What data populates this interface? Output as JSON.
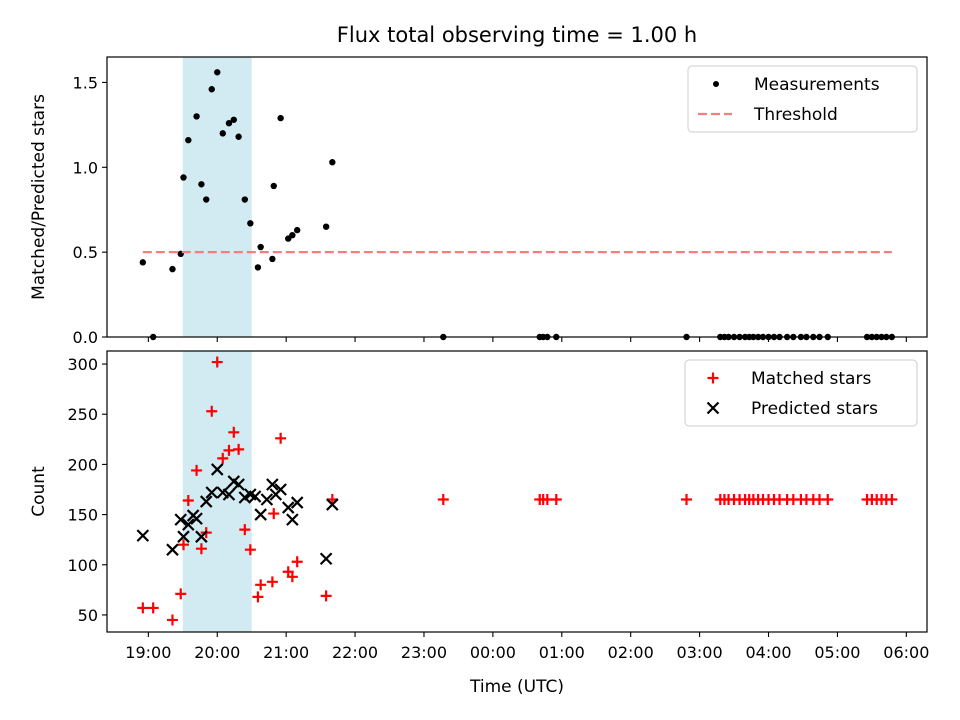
{
  "figure": {
    "title": "Flux total observing time = 1.00 h",
    "xlabel": "Time (UTC)",
    "x_ticks": [
      "19:00",
      "20:00",
      "21:00",
      "22:00",
      "23:00",
      "00:00",
      "01:00",
      "02:00",
      "03:00",
      "04:00",
      "05:00",
      "06:00"
    ],
    "x_tick_hours": [
      0,
      1,
      2,
      3,
      4,
      5,
      6,
      7,
      8,
      9,
      10,
      11
    ],
    "x_origin": "19:00",
    "x_range_hours": [
      -0.6,
      11.3
    ],
    "highlight_span_hours": [
      0.5,
      1.5
    ],
    "highlight_color": "#add8e6"
  },
  "chart_data": [
    {
      "type": "scatter",
      "ylabel": "Matched/Predicted stars",
      "ylim": [
        0,
        1.65
      ],
      "y_ticks": [
        "0.0",
        "0.5",
        "1.0",
        "1.5"
      ],
      "y_tick_values": [
        0,
        0.5,
        1.0,
        1.5
      ],
      "legend_position": "top-right",
      "series": [
        {
          "name": "Measurements",
          "marker": "dot",
          "color": "#000000",
          "points": [
            [
              -0.08,
              0.44
            ],
            [
              0.07,
              0.0
            ],
            [
              0.35,
              0.4
            ],
            [
              0.47,
              0.49
            ],
            [
              0.51,
              0.94
            ],
            [
              0.58,
              1.16
            ],
            [
              0.7,
              1.3
            ],
            [
              0.77,
              0.9
            ],
            [
              0.84,
              0.81
            ],
            [
              0.92,
              1.46
            ],
            [
              1.0,
              1.56
            ],
            [
              1.08,
              1.2
            ],
            [
              1.17,
              1.26
            ],
            [
              1.24,
              1.28
            ],
            [
              1.31,
              1.18
            ],
            [
              1.4,
              0.81
            ],
            [
              1.48,
              0.67
            ],
            [
              1.63,
              0.53
            ],
            [
              1.59,
              0.41
            ],
            [
              1.8,
              0.46
            ],
            [
              1.82,
              0.89
            ],
            [
              1.92,
              1.29
            ],
            [
              2.03,
              0.58
            ],
            [
              2.09,
              0.6
            ],
            [
              2.16,
              0.63
            ],
            [
              2.58,
              0.65
            ],
            [
              2.67,
              1.03
            ],
            [
              4.28,
              0.0
            ],
            [
              5.68,
              0.0
            ],
            [
              5.73,
              0.0
            ],
            [
              5.79,
              0.0
            ],
            [
              5.92,
              0.0
            ],
            [
              7.81,
              0.0
            ],
            [
              8.3,
              0.0
            ],
            [
              8.36,
              0.0
            ],
            [
              8.42,
              0.0
            ],
            [
              8.5,
              0.0
            ],
            [
              8.58,
              0.0
            ],
            [
              8.66,
              0.0
            ],
            [
              8.72,
              0.0
            ],
            [
              8.78,
              0.0
            ],
            [
              8.85,
              0.0
            ],
            [
              8.92,
              0.0
            ],
            [
              9.0,
              0.0
            ],
            [
              9.08,
              0.0
            ],
            [
              9.16,
              0.0
            ],
            [
              9.27,
              0.0
            ],
            [
              9.36,
              0.0
            ],
            [
              9.47,
              0.0
            ],
            [
              9.55,
              0.0
            ],
            [
              9.65,
              0.0
            ],
            [
              9.74,
              0.0
            ],
            [
              9.86,
              0.0
            ],
            [
              10.43,
              0.0
            ],
            [
              10.5,
              0.0
            ],
            [
              10.57,
              0.0
            ],
            [
              10.64,
              0.0
            ],
            [
              10.71,
              0.0
            ],
            [
              10.79,
              0.0
            ]
          ]
        },
        {
          "name": "Threshold",
          "marker": "dashed-line",
          "color": "#f08080",
          "points": [
            [
              -0.08,
              0.5
            ],
            [
              10.79,
              0.5
            ]
          ]
        }
      ]
    },
    {
      "type": "scatter",
      "ylabel": "Count",
      "ylim": [
        33,
        313
      ],
      "y_ticks": [
        "50",
        "100",
        "150",
        "200",
        "250",
        "300"
      ],
      "y_tick_values": [
        50,
        100,
        150,
        200,
        250,
        300
      ],
      "legend_position": "top-right",
      "series": [
        {
          "name": "Matched stars",
          "marker": "plus",
          "color": "#ff0000",
          "points": [
            [
              -0.08,
              57
            ],
            [
              0.07,
              57
            ],
            [
              0.35,
              45
            ],
            [
              0.47,
              71
            ],
            [
              0.51,
              120
            ],
            [
              0.58,
              164
            ],
            [
              0.7,
              194
            ],
            [
              0.77,
              116
            ],
            [
              0.84,
              132
            ],
            [
              0.92,
              253
            ],
            [
              1.0,
              302
            ],
            [
              1.08,
              206
            ],
            [
              1.17,
              214
            ],
            [
              1.24,
              232
            ],
            [
              1.31,
              215
            ],
            [
              1.4,
              135
            ],
            [
              1.48,
              115
            ],
            [
              1.59,
              68
            ],
            [
              1.63,
              80
            ],
            [
              1.8,
              83
            ],
            [
              1.82,
              151
            ],
            [
              1.92,
              226
            ],
            [
              2.03,
              93
            ],
            [
              2.09,
              88
            ],
            [
              2.16,
              103
            ],
            [
              2.58,
              69
            ],
            [
              2.67,
              165
            ],
            [
              4.28,
              165
            ],
            [
              5.68,
              165
            ],
            [
              5.73,
              165
            ],
            [
              5.79,
              165
            ],
            [
              5.92,
              165
            ],
            [
              7.81,
              165
            ],
            [
              8.3,
              165
            ],
            [
              8.36,
              165
            ],
            [
              8.42,
              165
            ],
            [
              8.5,
              165
            ],
            [
              8.58,
              165
            ],
            [
              8.66,
              165
            ],
            [
              8.72,
              165
            ],
            [
              8.78,
              165
            ],
            [
              8.85,
              165
            ],
            [
              8.92,
              165
            ],
            [
              9.0,
              165
            ],
            [
              9.08,
              165
            ],
            [
              9.16,
              165
            ],
            [
              9.27,
              165
            ],
            [
              9.36,
              165
            ],
            [
              9.47,
              165
            ],
            [
              9.55,
              165
            ],
            [
              9.65,
              165
            ],
            [
              9.74,
              165
            ],
            [
              9.86,
              165
            ],
            [
              10.43,
              165
            ],
            [
              10.5,
              165
            ],
            [
              10.57,
              165
            ],
            [
              10.64,
              165
            ],
            [
              10.71,
              165
            ],
            [
              10.79,
              165
            ]
          ]
        },
        {
          "name": "Predicted stars",
          "marker": "x",
          "color": "#000000",
          "points": [
            [
              -0.08,
              129
            ],
            [
              0.35,
              115
            ],
            [
              0.47,
              145
            ],
            [
              0.51,
              128
            ],
            [
              0.58,
              140
            ],
            [
              0.65,
              149
            ],
            [
              0.7,
              146
            ],
            [
              0.77,
              128
            ],
            [
              0.84,
              163
            ],
            [
              0.92,
              172
            ],
            [
              1.0,
              195
            ],
            [
              1.08,
              172
            ],
            [
              1.17,
              170
            ],
            [
              1.24,
              183
            ],
            [
              1.31,
              180
            ],
            [
              1.4,
              167
            ],
            [
              1.48,
              170
            ],
            [
              1.55,
              168
            ],
            [
              1.63,
              150
            ],
            [
              1.72,
              165
            ],
            [
              1.8,
              180
            ],
            [
              1.85,
              170
            ],
            [
              1.92,
              175
            ],
            [
              2.03,
              157
            ],
            [
              2.09,
              145
            ],
            [
              2.16,
              162
            ],
            [
              2.58,
              106
            ],
            [
              2.67,
              160
            ]
          ]
        }
      ]
    }
  ]
}
